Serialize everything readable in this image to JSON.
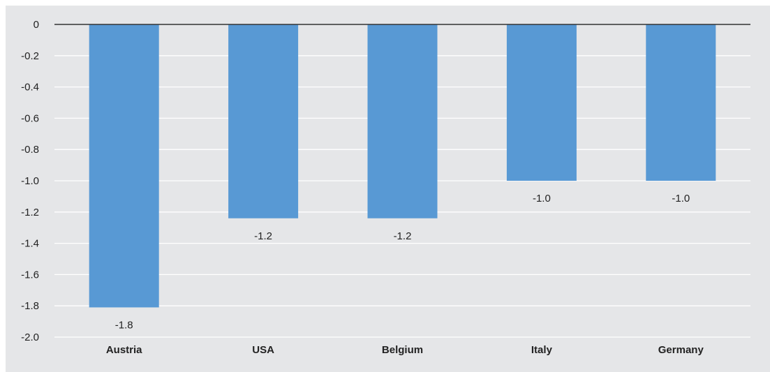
{
  "chart_data": {
    "type": "bar",
    "title": "",
    "xlabel": "",
    "ylabel": "",
    "categories": [
      "Austria",
      "USA",
      "Belgium",
      "Italy",
      "Germany"
    ],
    "values": [
      -1.81,
      -1.24,
      -1.24,
      -1.0,
      -1.0
    ],
    "data_labels": [
      "-1.8",
      "-1.2",
      "-1.2",
      "-1.0",
      "-1.0"
    ],
    "ylim": [
      -2.0,
      0
    ],
    "yticks": [
      0,
      -0.2,
      -0.4,
      -0.6,
      -0.8,
      -1.0,
      -1.2,
      -1.4,
      -1.6,
      -1.8,
      -2.0
    ],
    "ytick_labels": [
      "0",
      "-0.2",
      "-0.4",
      "-0.6",
      "-0.8",
      "-1.0",
      "-1.2",
      "-1.4",
      "-1.6",
      "-1.8",
      "-2.0"
    ],
    "grid": true,
    "legend": "none"
  },
  "colors": {
    "bar": "#5899d4",
    "background": "#e5e6e8",
    "gridline": "#ffffff",
    "zero_line": "#333333",
    "text": "#222222"
  }
}
